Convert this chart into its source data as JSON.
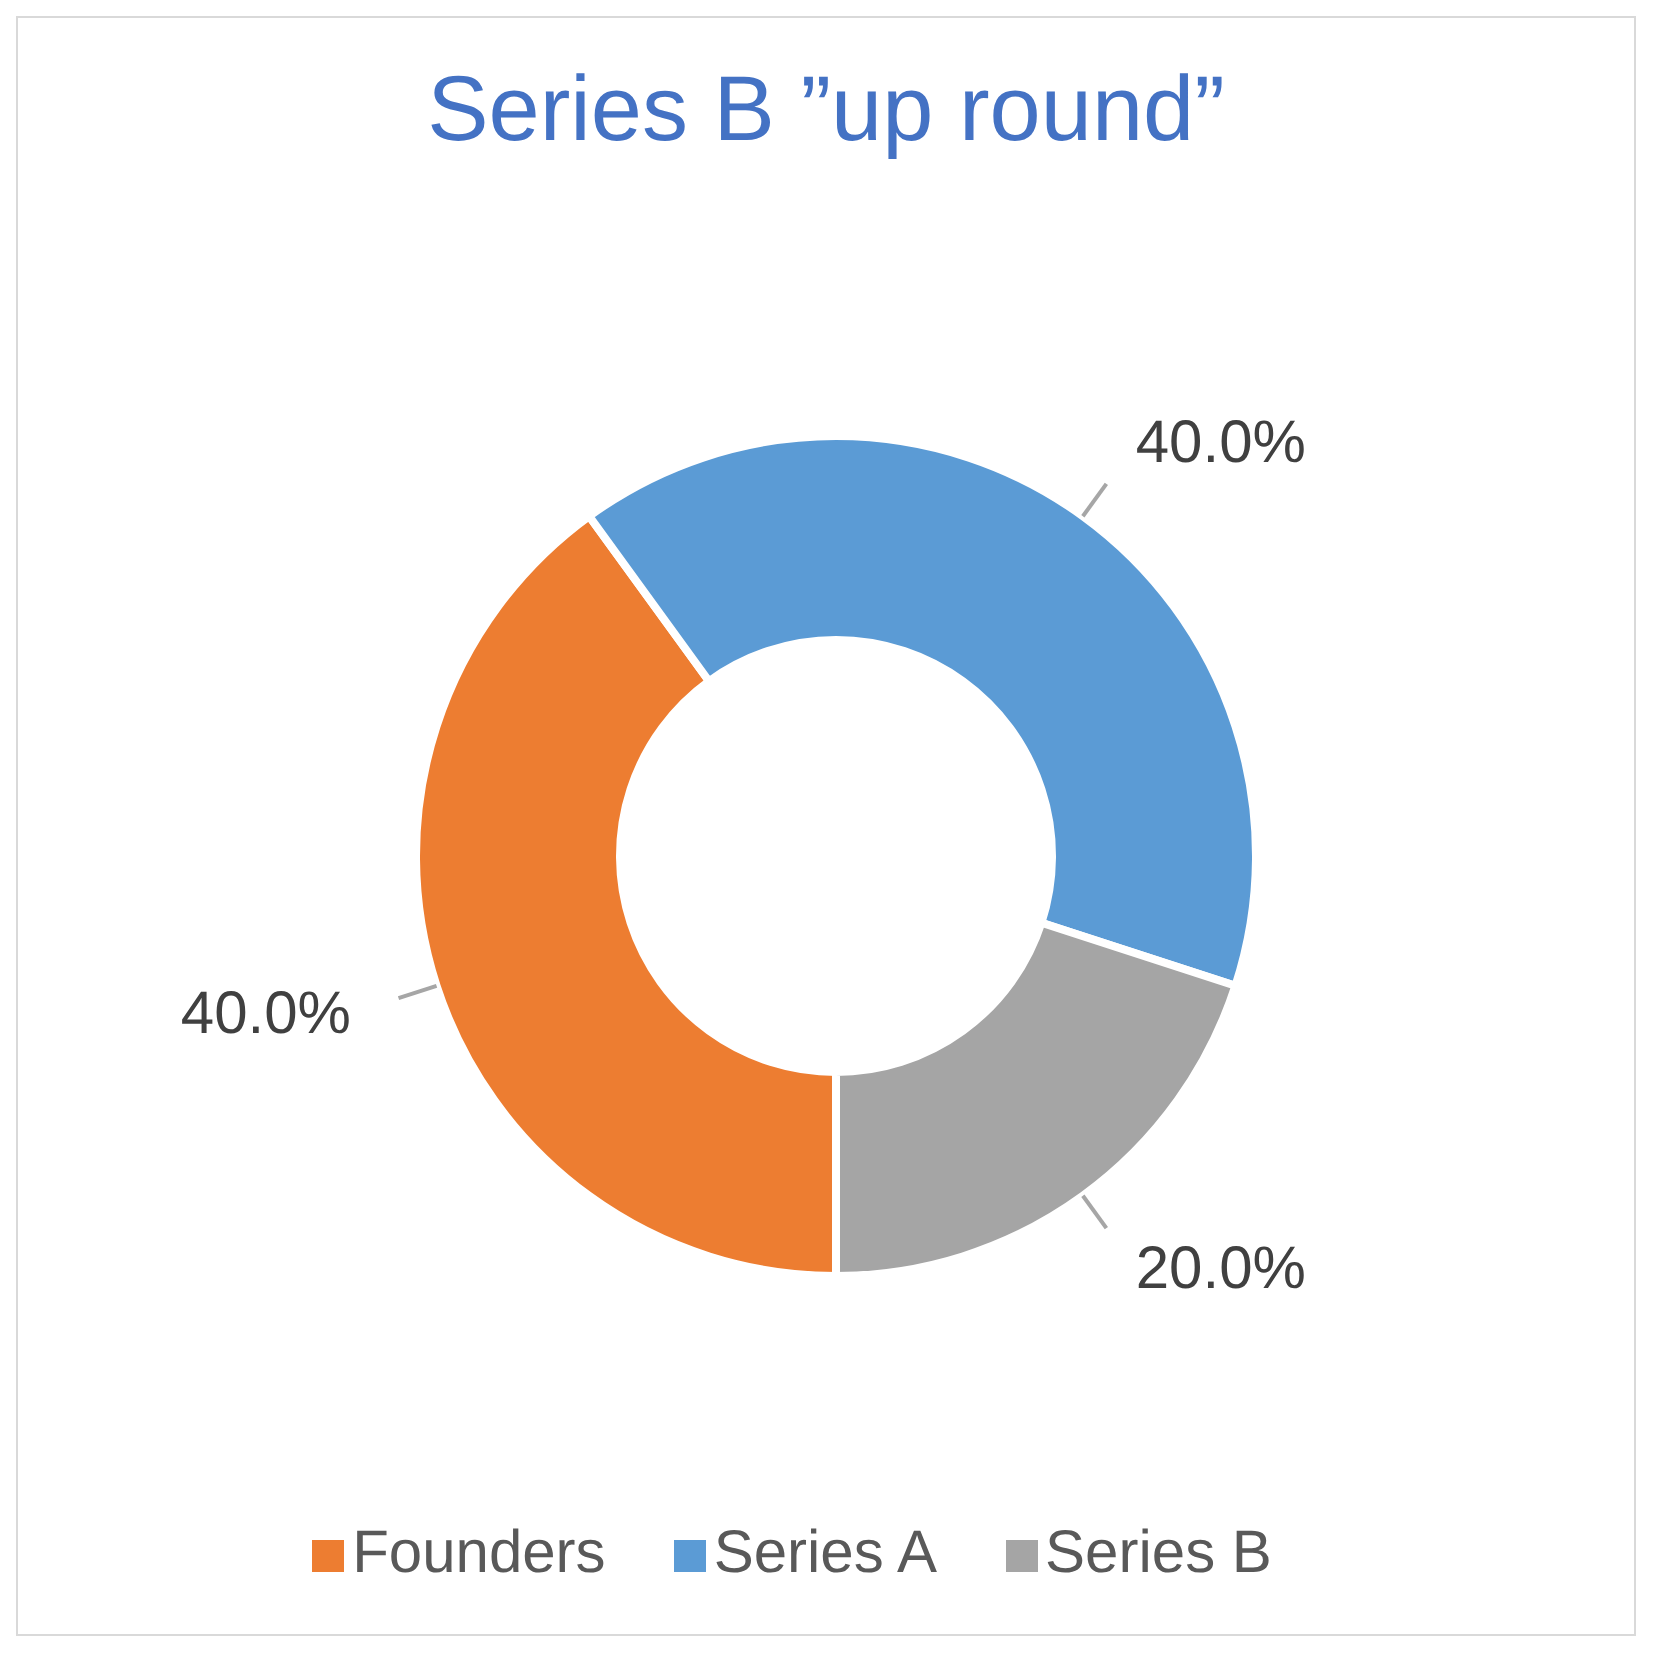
{
  "chart_data": {
    "type": "donut",
    "title": "Series B ”up round”",
    "categories": [
      "Founders",
      "Series A",
      "Series B"
    ],
    "values": [
      40,
      40,
      20
    ],
    "colors": [
      "#ed7d31",
      "#5b9bd5",
      "#a5a5a5"
    ],
    "value_labels": [
      "40.0%",
      "40.0%",
      "20.0%"
    ],
    "legend": "bottom"
  }
}
